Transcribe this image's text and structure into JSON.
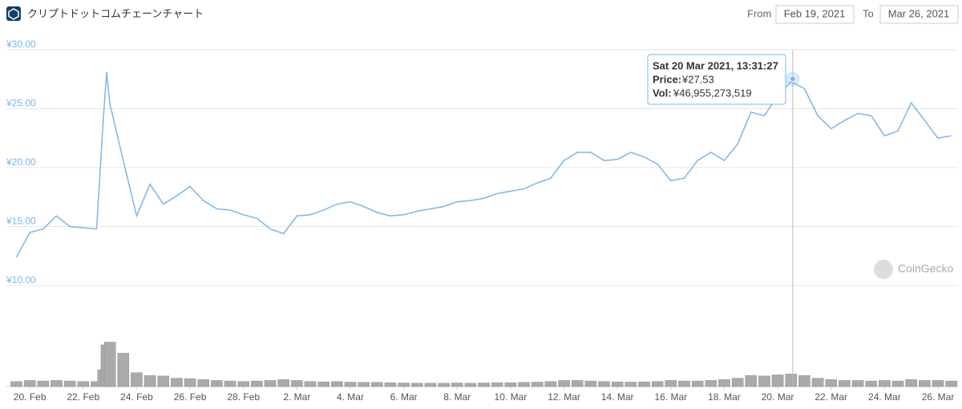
{
  "header": {
    "title": "クリプトドットコムチェーンチャート",
    "from_label": "From",
    "from_value": "Feb 19, 2021",
    "to_label": "To",
    "to_value": "Mar 26, 2021",
    "watermark": "CoinGecko"
  },
  "chart_data": {
    "type": "line",
    "x": [
      "2021-02-19T12:00",
      "2021-02-20T00:00",
      "2021-02-20T12:00",
      "2021-02-21T00:00",
      "2021-02-21T12:00",
      "2021-02-22T00:00",
      "2021-02-22T12:00",
      "2021-02-22T18:00",
      "2021-02-22T21:00",
      "2021-02-23T00:00",
      "2021-02-23T12:00",
      "2021-02-24T00:00",
      "2021-02-24T12:00",
      "2021-02-25T00:00",
      "2021-02-25T12:00",
      "2021-02-26T00:00",
      "2021-02-26T12:00",
      "2021-02-27T00:00",
      "2021-02-27T12:00",
      "2021-02-28T00:00",
      "2021-02-28T12:00",
      "2021-03-01T00:00",
      "2021-03-01T12:00",
      "2021-03-02T00:00",
      "2021-03-02T12:00",
      "2021-03-03T00:00",
      "2021-03-03T12:00",
      "2021-03-04T00:00",
      "2021-03-04T12:00",
      "2021-03-05T00:00",
      "2021-03-05T12:00",
      "2021-03-06T00:00",
      "2021-03-06T12:00",
      "2021-03-07T00:00",
      "2021-03-07T12:00",
      "2021-03-08T00:00",
      "2021-03-08T12:00",
      "2021-03-09T00:00",
      "2021-03-09T12:00",
      "2021-03-10T00:00",
      "2021-03-10T12:00",
      "2021-03-11T00:00",
      "2021-03-11T12:00",
      "2021-03-12T00:00",
      "2021-03-12T12:00",
      "2021-03-13T00:00",
      "2021-03-13T12:00",
      "2021-03-14T00:00",
      "2021-03-14T12:00",
      "2021-03-15T00:00",
      "2021-03-15T12:00",
      "2021-03-16T00:00",
      "2021-03-16T12:00",
      "2021-03-17T00:00",
      "2021-03-17T12:00",
      "2021-03-18T00:00",
      "2021-03-18T12:00",
      "2021-03-19T00:00",
      "2021-03-19T12:00",
      "2021-03-20T00:00",
      "2021-03-20T12:00",
      "2021-03-21T00:00",
      "2021-03-21T12:00",
      "2021-03-22T00:00",
      "2021-03-22T12:00",
      "2021-03-23T00:00",
      "2021-03-23T12:00",
      "2021-03-24T00:00",
      "2021-03-24T12:00",
      "2021-03-25T00:00",
      "2021-03-25T12:00",
      "2021-03-26T00:00",
      "2021-03-26T12:00"
    ],
    "price": {
      "color": "#7cb5ec",
      "values": [
        12.4,
        14.5,
        14.8,
        15.9,
        15.0,
        14.9,
        14.8,
        24.0,
        28.1,
        25.4,
        20.6,
        15.9,
        18.6,
        16.9,
        17.6,
        18.4,
        17.2,
        16.5,
        16.4,
        16.0,
        15.7,
        14.8,
        14.4,
        15.9,
        16.0,
        16.4,
        16.9,
        17.1,
        16.7,
        16.2,
        15.9,
        16.0,
        16.3,
        16.5,
        16.7,
        17.1,
        17.2,
        17.4,
        17.8,
        18.0,
        18.2,
        18.7,
        19.1,
        20.6,
        21.3,
        21.3,
        20.6,
        20.7,
        21.3,
        20.9,
        20.3,
        18.9,
        19.1,
        20.6,
        21.3,
        20.6,
        22.0,
        24.7,
        24.4,
        26.1,
        27.3,
        26.7,
        24.4,
        23.3,
        24.0,
        24.6,
        24.4,
        22.7,
        23.1,
        25.5,
        24.0,
        22.5,
        22.7
      ]
    },
    "volume": {
      "color": "#aaaaaa",
      "values": [
        18000000000,
        22000000000,
        20000000000,
        22000000000,
        20000000000,
        18000000000,
        18000000000,
        60000000000,
        150000000000,
        160000000000,
        120000000000,
        50000000000,
        40000000000,
        38000000000,
        30000000000,
        28000000000,
        25000000000,
        22000000000,
        20000000000,
        18000000000,
        20000000000,
        22000000000,
        25000000000,
        22000000000,
        18000000000,
        17000000000,
        18000000000,
        16000000000,
        15000000000,
        15000000000,
        14000000000,
        13000000000,
        12000000000,
        12000000000,
        12000000000,
        13000000000,
        12000000000,
        13000000000,
        14000000000,
        14000000000,
        15000000000,
        16000000000,
        18000000000,
        22000000000,
        22000000000,
        20000000000,
        18000000000,
        17000000000,
        16000000000,
        17000000000,
        18000000000,
        22000000000,
        20000000000,
        20000000000,
        22000000000,
        25000000000,
        30000000000,
        40000000000,
        38000000000,
        42000000000,
        45000000000,
        40000000000,
        30000000000,
        25000000000,
        22000000000,
        22000000000,
        20000000000,
        22000000000,
        20000000000,
        25000000000,
        22000000000,
        22000000000,
        20000000000
      ]
    },
    "xlim": [
      "2021-02-19T03:00",
      "2021-03-26T18:00"
    ],
    "xticks": [
      {
        "value": "2021-02-20T00:00",
        "label": "20. Feb"
      },
      {
        "value": "2021-02-22T00:00",
        "label": "22. Feb"
      },
      {
        "value": "2021-02-24T00:00",
        "label": "24. Feb"
      },
      {
        "value": "2021-02-26T00:00",
        "label": "26. Feb"
      },
      {
        "value": "2021-02-28T00:00",
        "label": "28. Feb"
      },
      {
        "value": "2021-03-02T00:00",
        "label": "2. Mar"
      },
      {
        "value": "2021-03-04T00:00",
        "label": "4. Mar"
      },
      {
        "value": "2021-03-06T00:00",
        "label": "6. Mar"
      },
      {
        "value": "2021-03-08T00:00",
        "label": "8. Mar"
      },
      {
        "value": "2021-03-10T00:00",
        "label": "10. Mar"
      },
      {
        "value": "2021-03-12T00:00",
        "label": "12. Mar"
      },
      {
        "value": "2021-03-14T00:00",
        "label": "14. Mar"
      },
      {
        "value": "2021-03-16T00:00",
        "label": "16. Mar"
      },
      {
        "value": "2021-03-18T00:00",
        "label": "18. Mar"
      },
      {
        "value": "2021-03-20T00:00",
        "label": "20. Mar"
      },
      {
        "value": "2021-03-22T00:00",
        "label": "22. Mar"
      },
      {
        "value": "2021-03-24T00:00",
        "label": "24. Mar"
      },
      {
        "value": "2021-03-26T00:00",
        "label": "26. Mar"
      }
    ],
    "ylim": [
      10,
      30
    ],
    "yticks": [
      {
        "value": 30,
        "label": "¥30.00"
      },
      {
        "value": 25,
        "label": "¥25.00"
      },
      {
        "value": 20,
        "label": "¥20.00"
      },
      {
        "value": 15,
        "label": "¥15.00"
      },
      {
        "value": 10,
        "label": "¥10.00"
      }
    ],
    "volume_ylim": [
      0,
      300000000000
    ],
    "grid": true,
    "tooltip": {
      "x": "2021-03-20T13:31:27",
      "date_label": "Sat 20 Mar 2021, 13:31:27",
      "price_text": "Price:",
      "price": 27.53,
      "price_label": "¥27.53",
      "vol_text": "Vol:",
      "vol": 46955273519,
      "vol_label": "¥46,955,273,519"
    }
  }
}
